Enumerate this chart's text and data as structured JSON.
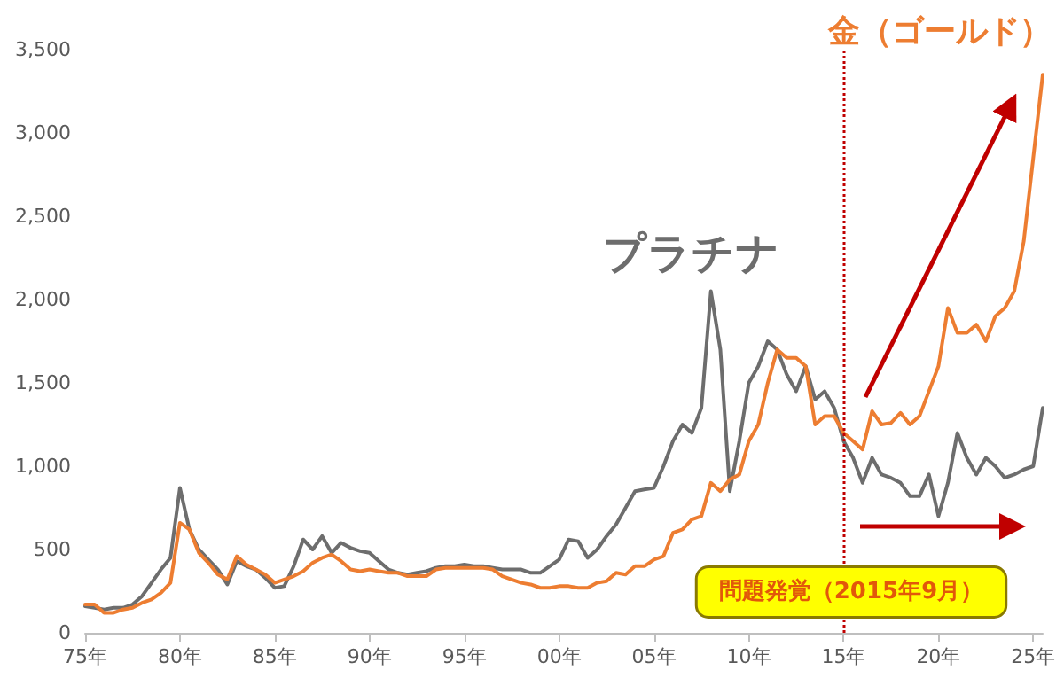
{
  "chart_data": {
    "type": "line",
    "categories": [
      "75年",
      null,
      null,
      null,
      null,
      null,
      null,
      null,
      null,
      null,
      "80年",
      null,
      null,
      null,
      null,
      null,
      null,
      null,
      null,
      null,
      "85年",
      null,
      null,
      null,
      null,
      null,
      null,
      null,
      null,
      null,
      "90年",
      null,
      null,
      null,
      null,
      null,
      null,
      null,
      null,
      null,
      "95年",
      null,
      null,
      null,
      null,
      null,
      null,
      null,
      null,
      null,
      "00年",
      null,
      null,
      null,
      null,
      null,
      null,
      null,
      null,
      null,
      "05年",
      null,
      null,
      null,
      null,
      null,
      null,
      null,
      null,
      null,
      "10年",
      null,
      null,
      null,
      null,
      null,
      null,
      null,
      null,
      null,
      "15年",
      null,
      null,
      null,
      null,
      null,
      null,
      null,
      null,
      null,
      "20年",
      null,
      null,
      null,
      null,
      null,
      null,
      null,
      null,
      null,
      "25年",
      null
    ],
    "ylim": [
      0,
      3500
    ],
    "yticks": [
      {
        "value": 0,
        "label": "0"
      },
      {
        "value": 500,
        "label": "500"
      },
      {
        "value": 1000,
        "label": "1,000"
      },
      {
        "value": 1500,
        "label": "1,500"
      },
      {
        "value": 2000,
        "label": "2,000"
      },
      {
        "value": 2500,
        "label": "2,500"
      },
      {
        "value": 3000,
        "label": "3,000"
      },
      {
        "value": 3500,
        "label": "3,500"
      }
    ],
    "grid": false,
    "legend": false,
    "marker": "none",
    "line_style": "solid",
    "series": [
      {
        "name": "プラチナ",
        "color": "#6d6d6d",
        "values": [
          160,
          150,
          140,
          150,
          150,
          170,
          220,
          300,
          380,
          450,
          870,
          620,
          500,
          440,
          380,
          290,
          430,
          400,
          380,
          330,
          270,
          280,
          400,
          560,
          500,
          580,
          480,
          540,
          510,
          490,
          480,
          430,
          380,
          360,
          350,
          360,
          370,
          390,
          400,
          400,
          410,
          400,
          400,
          390,
          380,
          380,
          380,
          360,
          360,
          400,
          440,
          560,
          550,
          450,
          500,
          580,
          650,
          750,
          850,
          860,
          870,
          1000,
          1150,
          1250,
          1200,
          1350,
          2050,
          1700,
          850,
          1150,
          1500,
          1600,
          1750,
          1700,
          1550,
          1450,
          1600,
          1400,
          1450,
          1350,
          1150,
          1050,
          900,
          1050,
          950,
          930,
          900,
          820,
          820,
          950,
          700,
          900,
          1200,
          1050,
          950,
          1050,
          1000,
          930,
          950,
          980,
          1000,
          1350
        ]
      },
      {
        "name": "金（ゴールド）",
        "color": "#ed7d31",
        "values": [
          170,
          170,
          120,
          120,
          140,
          150,
          180,
          200,
          240,
          300,
          660,
          620,
          480,
          420,
          350,
          320,
          460,
          410,
          380,
          350,
          300,
          320,
          340,
          370,
          420,
          450,
          470,
          430,
          380,
          370,
          380,
          370,
          360,
          360,
          340,
          340,
          340,
          380,
          390,
          390,
          390,
          390,
          390,
          380,
          340,
          320,
          300,
          290,
          270,
          270,
          280,
          280,
          270,
          270,
          300,
          310,
          360,
          350,
          400,
          400,
          440,
          460,
          600,
          620,
          680,
          700,
          900,
          850,
          920,
          950,
          1150,
          1250,
          1500,
          1700,
          1650,
          1650,
          1600,
          1250,
          1300,
          1300,
          1200,
          1150,
          1100,
          1330,
          1250,
          1260,
          1320,
          1250,
          1300,
          1450,
          1600,
          1950,
          1800,
          1800,
          1850,
          1750,
          1900,
          1950,
          2050,
          2350,
          2850,
          3350
        ]
      }
    ],
    "ref_lines": [
      {
        "axis": "x",
        "value": "15年",
        "label": null,
        "color": "#c00000",
        "line_style": "dotted"
      }
    ],
    "annotations": [
      "問題発覚（2015年9月）"
    ]
  }
}
